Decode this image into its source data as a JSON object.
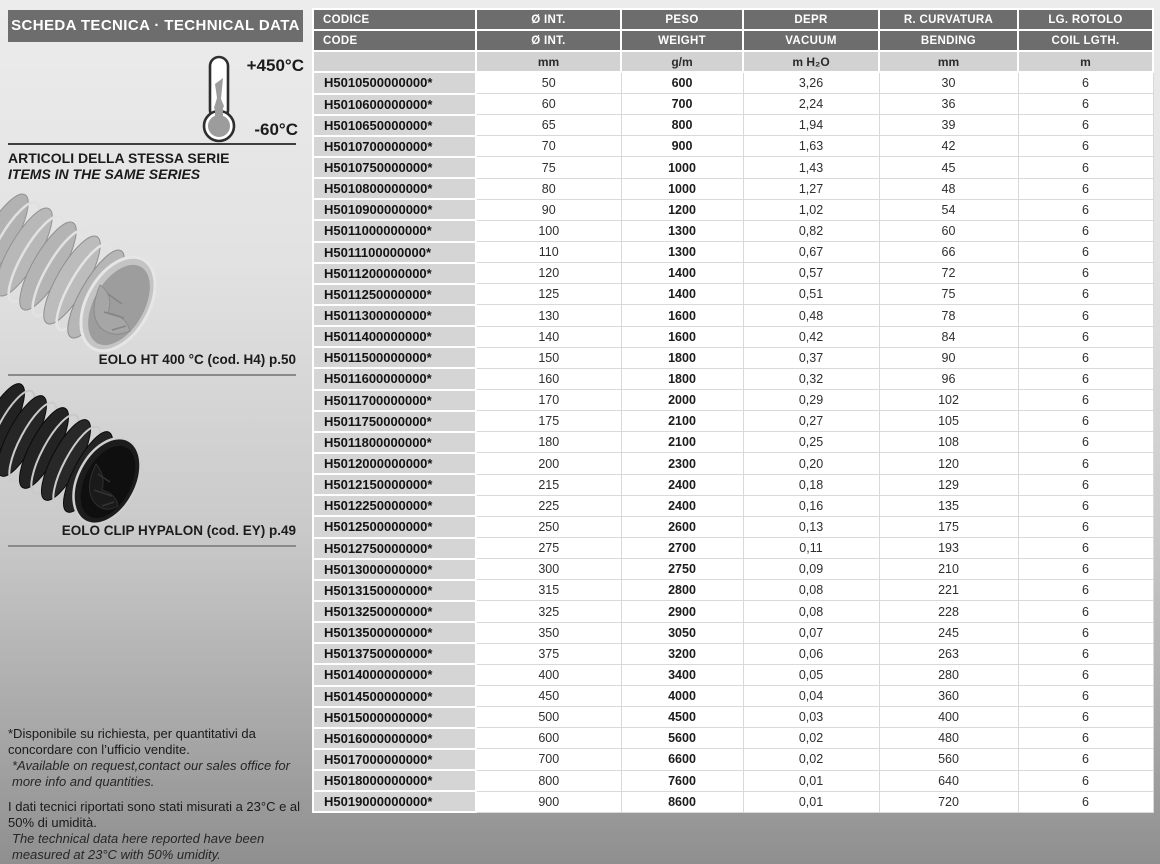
{
  "sidebar": {
    "header_title": "SCHEDA TECNICA · TECHNICAL DATA",
    "temperature_max": "+450°C",
    "temperature_min": "-60°C",
    "series_title_it": "ARTICOLI DELLA STESSA SERIE",
    "series_title_en": "ITEMS IN THE SAME SERIES",
    "products": [
      {
        "caption": "EOLO HT 400 °C (cod. H4) p.50",
        "image": "gray-corrugated-hose"
      },
      {
        "caption": "EOLO CLIP HYPALON (cod. EY) p.49",
        "image": "black-corrugated-hose"
      }
    ],
    "footnotes": {
      "availability_it": "*Disponibile su richiesta, per quantitativi da concordare con l’ufficio vendite.",
      "availability_en": "*Available on request,contact our sales office for more info and quantities.",
      "measurement_it": "I dati tecnici riportati sono stati misurati a 23°C e al 50% di umidità.",
      "measurement_en": "The technical data here reported have been measured at 23°C with 50% umidity."
    }
  },
  "table": {
    "headers": {
      "it": [
        "CODICE",
        "Ø INT.",
        "PESO",
        "DEPR",
        "R. CURVATURA",
        "LG. ROTOLO"
      ],
      "en": [
        "CODE",
        "Ø INT.",
        "WEIGHT",
        "VACUUM",
        "BENDING",
        "COIL LGTH."
      ],
      "units": [
        "",
        "mm",
        "g/m",
        "m H₂O",
        "mm",
        "m"
      ]
    },
    "column_keys": [
      "code",
      "inner-diameter",
      "weight",
      "vacuum",
      "bending-radius",
      "coil-length"
    ],
    "rows": [
      [
        "H5010500000000*",
        "50",
        "600",
        "3,26",
        "30",
        "6"
      ],
      [
        "H5010600000000*",
        "60",
        "700",
        "2,24",
        "36",
        "6"
      ],
      [
        "H5010650000000*",
        "65",
        "800",
        "1,94",
        "39",
        "6"
      ],
      [
        "H5010700000000*",
        "70",
        "900",
        "1,63",
        "42",
        "6"
      ],
      [
        "H5010750000000*",
        "75",
        "1000",
        "1,43",
        "45",
        "6"
      ],
      [
        "H5010800000000*",
        "80",
        "1000",
        "1,27",
        "48",
        "6"
      ],
      [
        "H5010900000000*",
        "90",
        "1200",
        "1,02",
        "54",
        "6"
      ],
      [
        "H5011000000000*",
        "100",
        "1300",
        "0,82",
        "60",
        "6"
      ],
      [
        "H5011100000000*",
        "110",
        "1300",
        "0,67",
        "66",
        "6"
      ],
      [
        "H5011200000000*",
        "120",
        "1400",
        "0,57",
        "72",
        "6"
      ],
      [
        "H5011250000000*",
        "125",
        "1400",
        "0,51",
        "75",
        "6"
      ],
      [
        "H5011300000000*",
        "130",
        "1600",
        "0,48",
        "78",
        "6"
      ],
      [
        "H5011400000000*",
        "140",
        "1600",
        "0,42",
        "84",
        "6"
      ],
      [
        "H5011500000000*",
        "150",
        "1800",
        "0,37",
        "90",
        "6"
      ],
      [
        "H5011600000000*",
        "160",
        "1800",
        "0,32",
        "96",
        "6"
      ],
      [
        "H5011700000000*",
        "170",
        "2000",
        "0,29",
        "102",
        "6"
      ],
      [
        "H5011750000000*",
        "175",
        "2100",
        "0,27",
        "105",
        "6"
      ],
      [
        "H5011800000000*",
        "180",
        "2100",
        "0,25",
        "108",
        "6"
      ],
      [
        "H5012000000000*",
        "200",
        "2300",
        "0,20",
        "120",
        "6"
      ],
      [
        "H5012150000000*",
        "215",
        "2400",
        "0,18",
        "129",
        "6"
      ],
      [
        "H5012250000000*",
        "225",
        "2400",
        "0,16",
        "135",
        "6"
      ],
      [
        "H5012500000000*",
        "250",
        "2600",
        "0,13",
        "175",
        "6"
      ],
      [
        "H5012750000000*",
        "275",
        "2700",
        "0,11",
        "193",
        "6"
      ],
      [
        "H5013000000000*",
        "300",
        "2750",
        "0,09",
        "210",
        "6"
      ],
      [
        "H5013150000000*",
        "315",
        "2800",
        "0,08",
        "221",
        "6"
      ],
      [
        "H5013250000000*",
        "325",
        "2900",
        "0,08",
        "228",
        "6"
      ],
      [
        "H5013500000000*",
        "350",
        "3050",
        "0,07",
        "245",
        "6"
      ],
      [
        "H5013750000000*",
        "375",
        "3200",
        "0,06",
        "263",
        "6"
      ],
      [
        "H5014000000000*",
        "400",
        "3400",
        "0,05",
        "280",
        "6"
      ],
      [
        "H5014500000000*",
        "450",
        "4000",
        "0,04",
        "360",
        "6"
      ],
      [
        "H5015000000000*",
        "500",
        "4500",
        "0,03",
        "400",
        "6"
      ],
      [
        "H5016000000000*",
        "600",
        "5600",
        "0,02",
        "480",
        "6"
      ],
      [
        "H5017000000000*",
        "700",
        "6600",
        "0,02",
        "560",
        "6"
      ],
      [
        "H5018000000000*",
        "800",
        "7600",
        "0,01",
        "640",
        "6"
      ],
      [
        "H5019000000000*",
        "900",
        "8600",
        "0,01",
        "720",
        "6"
      ]
    ]
  },
  "colors": {
    "header_bar": "#6d6d6d",
    "units_row": "#d2d2d2",
    "code_cell": "#d5d5d5",
    "page_gradient_top": "#ececec",
    "page_gradient_bottom": "#8f8f8f"
  }
}
